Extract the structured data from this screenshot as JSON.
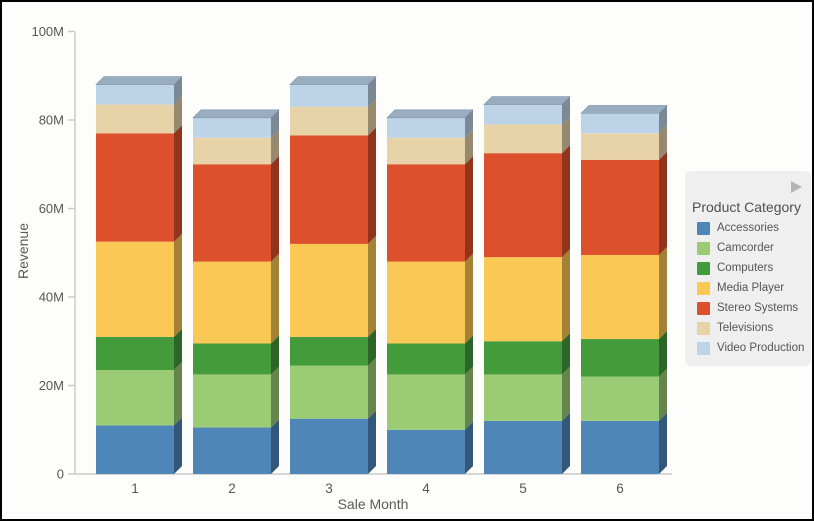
{
  "chart_data": {
    "type": "bar",
    "stacked": true,
    "effect": "3d",
    "title": "",
    "xlabel": "Sale Month",
    "ylabel": "Revenue",
    "categories": [
      "1",
      "2",
      "3",
      "4",
      "5",
      "6"
    ],
    "series": [
      {
        "name": "Accessories",
        "color": "#4e86b8",
        "values": [
          11,
          10.5,
          12.5,
          10,
          12,
          12
        ]
      },
      {
        "name": "Camcorder",
        "color": "#9bcc75",
        "values": [
          12.5,
          12,
          12,
          12.5,
          10.5,
          10
        ]
      },
      {
        "name": "Computers",
        "color": "#449b3c",
        "values": [
          7.5,
          7,
          6.5,
          7,
          7.5,
          8.5
        ]
      },
      {
        "name": "Media Player",
        "color": "#fac855",
        "values": [
          21.5,
          18.5,
          21,
          18.5,
          19,
          19
        ]
      },
      {
        "name": "Stereo Systems",
        "color": "#dd502c",
        "values": [
          24.5,
          22,
          24.5,
          22,
          23.5,
          21.5
        ]
      },
      {
        "name": "Televisions",
        "color": "#e8d2a8",
        "values": [
          6.5,
          6,
          6.5,
          6,
          6.5,
          6
        ]
      },
      {
        "name": "Video Production",
        "color": "#bdd3e8",
        "values": [
          4.5,
          4.5,
          5,
          4.5,
          4.5,
          4.5
        ]
      }
    ],
    "totals": [
      88,
      80.5,
      88,
      80.5,
      83.5,
      81.5
    ],
    "ylim": [
      0,
      100
    ],
    "y_ticks": [
      {
        "value": 0,
        "label": "0"
      },
      {
        "value": 20,
        "label": "20M"
      },
      {
        "value": 40,
        "label": "40M"
      },
      {
        "value": 60,
        "label": "60M"
      },
      {
        "value": 80,
        "label": "80M"
      },
      {
        "value": 100,
        "label": "100M"
      }
    ],
    "grid": false,
    "legend_position": "right",
    "legend_title": "Product Category"
  },
  "colors": {
    "background": "#fdfefb",
    "axis_line": "#c9c9c9",
    "tick_text": "#565656",
    "legend_background": "#efefef",
    "legend_arrow": "#b5b5b5",
    "window_border": "#000000"
  },
  "legend": {
    "title": "Product Category",
    "expander_icon": "right-triangle"
  }
}
